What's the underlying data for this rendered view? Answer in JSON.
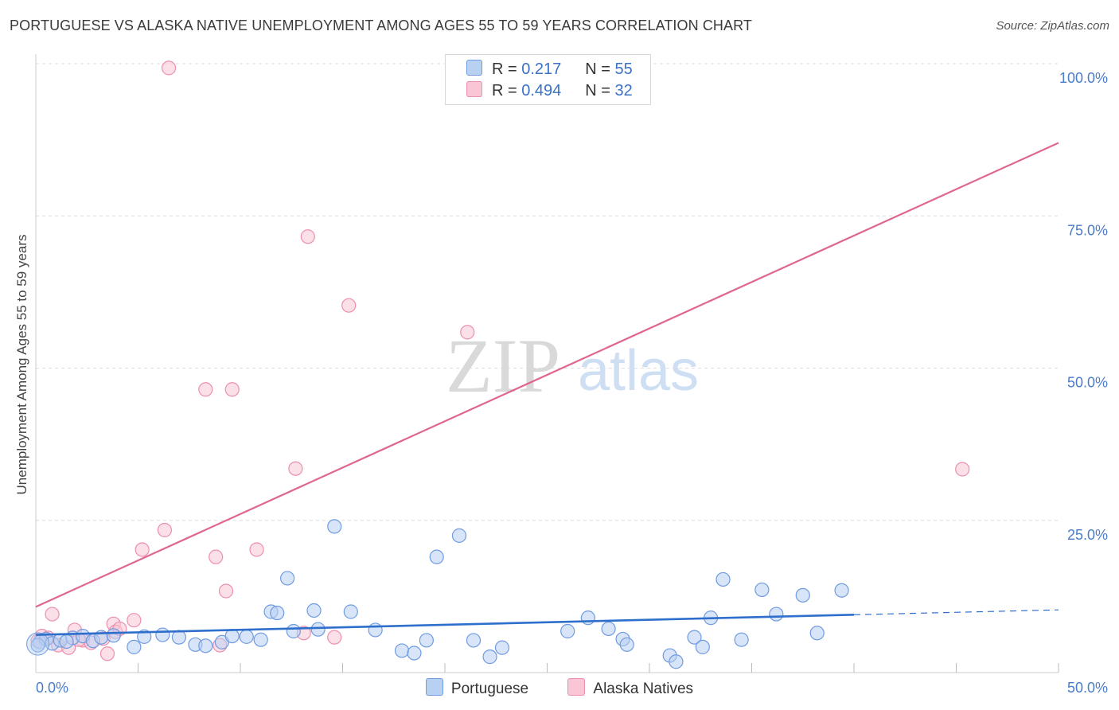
{
  "title": "PORTUGUESE VS ALASKA NATIVE UNEMPLOYMENT AMONG AGES 55 TO 59 YEARS CORRELATION CHART",
  "source": "Source: ZipAtlas.com",
  "watermark": {
    "zip": "ZIP",
    "atlas": "atlas"
  },
  "colors": {
    "blue_fill": "#b8d0f2",
    "blue_stroke": "#6f9be0",
    "blue_line": "#2f6fcc",
    "pink_fill": "#f9c6d6",
    "pink_stroke": "#ec8fae",
    "pink_line": "#e06690",
    "grid": "#dddddd",
    "tick_text": "#4a7cc9"
  },
  "legend": {
    "rows": [
      {
        "r_label": "R = ",
        "r_value": "0.217",
        "n_label": "N = ",
        "n_value": "55"
      },
      {
        "r_label": "R = ",
        "r_value": "0.494",
        "n_label": "N = ",
        "n_value": "32"
      }
    ]
  },
  "chart_data": {
    "type": "scatter",
    "title": "PORTUGUESE VS ALASKA NATIVE UNEMPLOYMENT AMONG AGES 55 TO 59 YEARS CORRELATION CHART",
    "xlabel": "",
    "ylabel": "Unemployment Among Ages 55 to 59 years",
    "xlim": [
      0,
      50
    ],
    "ylim": [
      0,
      100
    ],
    "x_tick_labels": [
      "0.0%",
      "50.0%"
    ],
    "y_ticks": [
      25,
      50,
      75,
      100
    ],
    "y_tick_labels": [
      "25.0%",
      "50.0%",
      "75.0%",
      "100.0%"
    ],
    "legend_position": "bottom-center",
    "series": [
      {
        "name": "Portuguese",
        "color": "blue",
        "R": 0.217,
        "N": 55,
        "trend": {
          "x0": 0,
          "y0": 6.2,
          "x1": 40,
          "y1": 9.5,
          "dashed_to_x": 50,
          "dashed_to_y": 10.3
        },
        "points": [
          [
            0.2,
            5.0
          ],
          [
            0.5,
            5.5
          ],
          [
            0.8,
            4.8
          ],
          [
            1.2,
            5.3
          ],
          [
            1.8,
            5.7
          ],
          [
            2.3,
            6.0
          ],
          [
            2.8,
            5.2
          ],
          [
            3.2,
            5.8
          ],
          [
            3.8,
            6.1
          ],
          [
            4.8,
            4.2
          ],
          [
            5.3,
            5.9
          ],
          [
            6.2,
            6.2
          ],
          [
            7.0,
            5.8
          ],
          [
            7.8,
            4.6
          ],
          [
            8.3,
            4.4
          ],
          [
            9.1,
            5.0
          ],
          [
            9.6,
            6.0
          ],
          [
            10.3,
            5.9
          ],
          [
            11.0,
            5.4
          ],
          [
            11.5,
            10.0
          ],
          [
            11.8,
            9.8
          ],
          [
            12.3,
            15.5
          ],
          [
            12.6,
            6.8
          ],
          [
            13.6,
            10.2
          ],
          [
            13.8,
            7.1
          ],
          [
            14.6,
            24.0
          ],
          [
            15.4,
            10.0
          ],
          [
            16.6,
            7.0
          ],
          [
            17.9,
            3.6
          ],
          [
            18.5,
            3.2
          ],
          [
            19.1,
            5.3
          ],
          [
            19.6,
            19.0
          ],
          [
            20.7,
            22.5
          ],
          [
            21.4,
            5.3
          ],
          [
            22.2,
            2.6
          ],
          [
            22.8,
            4.1
          ],
          [
            26.0,
            6.8
          ],
          [
            27.0,
            9.0
          ],
          [
            28.0,
            7.2
          ],
          [
            28.7,
            5.5
          ],
          [
            28.9,
            4.6
          ],
          [
            31.0,
            2.8
          ],
          [
            31.3,
            1.8
          ],
          [
            32.2,
            5.8
          ],
          [
            32.6,
            4.2
          ],
          [
            33.0,
            9.0
          ],
          [
            33.6,
            15.3
          ],
          [
            34.5,
            5.4
          ],
          [
            35.5,
            13.6
          ],
          [
            36.2,
            9.6
          ],
          [
            37.5,
            12.7
          ],
          [
            38.2,
            6.5
          ],
          [
            39.4,
            13.5
          ],
          [
            0.1,
            4.5
          ],
          [
            1.5,
            5.1
          ]
        ]
      },
      {
        "name": "Alaska Natives",
        "color": "pink",
        "R": 0.494,
        "N": 32,
        "trend": {
          "x0": 0,
          "y0": 10.8,
          "x1": 50,
          "y1": 87.0
        },
        "points": [
          [
            0.1,
            5.2
          ],
          [
            0.3,
            6.0
          ],
          [
            0.8,
            9.6
          ],
          [
            1.1,
            4.5
          ],
          [
            1.6,
            4.1
          ],
          [
            1.9,
            7.0
          ],
          [
            2.3,
            5.3
          ],
          [
            2.7,
            4.9
          ],
          [
            3.3,
            5.6
          ],
          [
            3.5,
            3.1
          ],
          [
            3.8,
            8.0
          ],
          [
            3.9,
            6.7
          ],
          [
            4.1,
            7.2
          ],
          [
            4.8,
            8.6
          ],
          [
            5.2,
            20.2
          ],
          [
            6.3,
            23.4
          ],
          [
            6.5,
            99.3
          ],
          [
            8.3,
            46.5
          ],
          [
            8.8,
            19.0
          ],
          [
            9.0,
            4.5
          ],
          [
            9.3,
            13.4
          ],
          [
            9.6,
            46.5
          ],
          [
            10.8,
            20.2
          ],
          [
            12.7,
            33.5
          ],
          [
            13.1,
            6.5
          ],
          [
            13.3,
            71.6
          ],
          [
            14.6,
            5.8
          ],
          [
            15.3,
            60.3
          ],
          [
            21.1,
            55.9
          ],
          [
            45.3,
            33.4
          ],
          [
            2.1,
            5.4
          ],
          [
            0.6,
            5.7
          ]
        ]
      }
    ]
  }
}
